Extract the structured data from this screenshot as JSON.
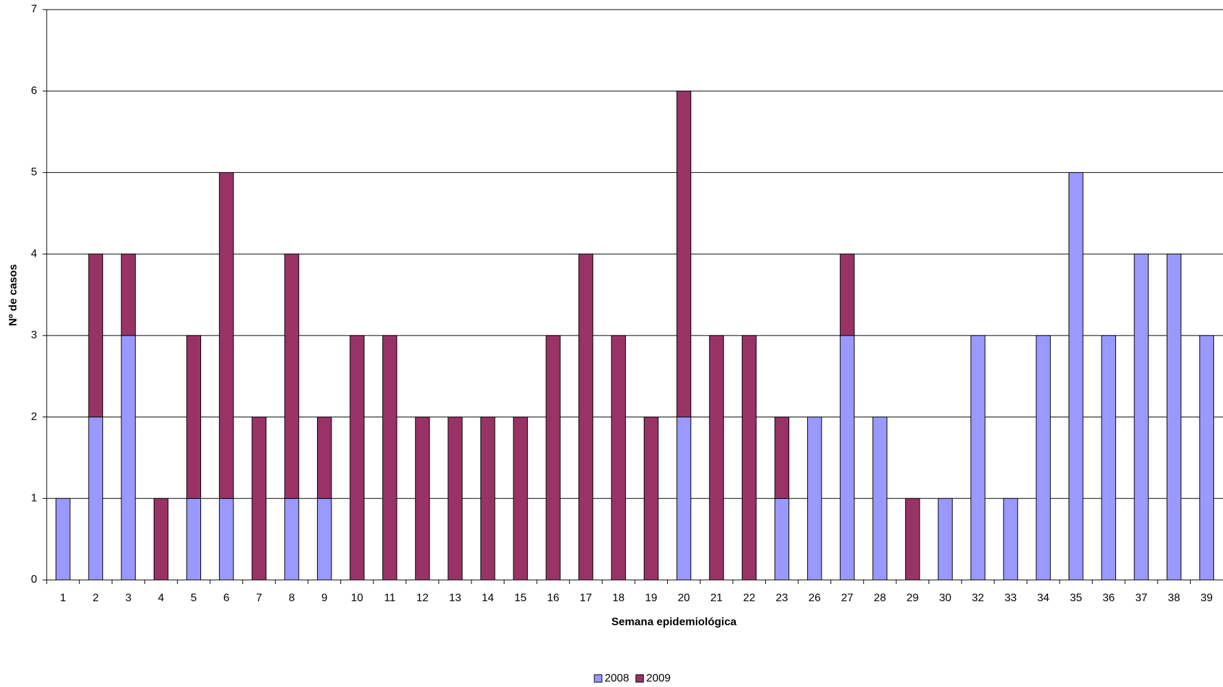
{
  "chart_data": {
    "type": "stacked_bar",
    "x_label": "Semana epidemiológica",
    "y_label": "Nº de casos",
    "categories": [
      "1",
      "2",
      "3",
      "4",
      "5",
      "6",
      "7",
      "8",
      "9",
      "10",
      "11",
      "12",
      "13",
      "14",
      "15",
      "16",
      "17",
      "18",
      "19",
      "20",
      "21",
      "22",
      "23",
      "26",
      "27",
      "28",
      "29",
      "30",
      "32",
      "33",
      "34",
      "35",
      "36",
      "37",
      "38",
      "39"
    ],
    "series": [
      {
        "name": "2008",
        "color": "#9999ff",
        "values": [
          1,
          2,
          3,
          0,
          1,
          1,
          0,
          1,
          1,
          0,
          0,
          0,
          0,
          0,
          0,
          0,
          0,
          0,
          0,
          2,
          0,
          0,
          1,
          2,
          3,
          2,
          0,
          1,
          3,
          1,
          3,
          5,
          3,
          4,
          4,
          3
        ]
      },
      {
        "name": "2009",
        "color": "#993366",
        "values": [
          0,
          2,
          1,
          1,
          2,
          4,
          2,
          3,
          1,
          3,
          3,
          2,
          2,
          2,
          2,
          3,
          4,
          3,
          2,
          4,
          3,
          3,
          1,
          0,
          1,
          0,
          1,
          0,
          0,
          0,
          0,
          0,
          0,
          0,
          0,
          0
        ]
      }
    ],
    "ylim": [
      0,
      7
    ],
    "yticks": [
      0,
      1,
      2,
      3,
      4,
      5,
      6,
      7
    ],
    "grid": true,
    "legend": "bottom"
  }
}
